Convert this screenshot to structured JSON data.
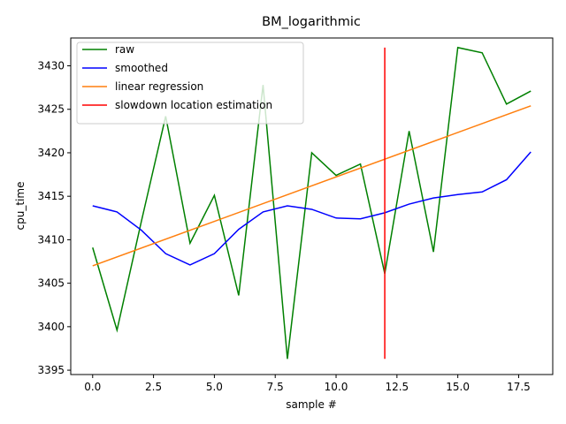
{
  "chart_data": {
    "type": "line",
    "title": "BM_logarithmic",
    "xlabel": "sample #",
    "ylabel": "cpu_time",
    "xlim": [
      -0.9,
      18.9
    ],
    "ylim": [
      3394.5,
      3433.2
    ],
    "x_ticks": [
      0.0,
      2.5,
      5.0,
      7.5,
      10.0,
      12.5,
      15.0,
      17.5
    ],
    "x_tick_labels": [
      "0.0",
      "2.5",
      "5.0",
      "7.5",
      "10.0",
      "12.5",
      "15.0",
      "17.5"
    ],
    "y_ticks": [
      3395,
      3400,
      3405,
      3410,
      3415,
      3420,
      3425,
      3430
    ],
    "y_tick_labels": [
      "3395",
      "3400",
      "3405",
      "3410",
      "3415",
      "3420",
      "3425",
      "3430"
    ],
    "grid": false,
    "legend_position": "top-left",
    "series": [
      {
        "name": "raw",
        "color": "#008000",
        "x": [
          0,
          1,
          2,
          3,
          4,
          5,
          6,
          7,
          8,
          9,
          10,
          11,
          12,
          13,
          14,
          15,
          16,
          17,
          18
        ],
        "values": [
          3409.1,
          3399.6,
          3412.1,
          3424.2,
          3409.6,
          3415.1,
          3403.6,
          3427.8,
          3396.3,
          3420.0,
          3417.4,
          3418.7,
          3406.1,
          3422.5,
          3408.6,
          3432.1,
          3431.5,
          3425.6,
          3427.1
        ]
      },
      {
        "name": "smoothed",
        "color": "#0000ff",
        "x": [
          0,
          1,
          2,
          3,
          4,
          5,
          6,
          7,
          8,
          9,
          10,
          11,
          12,
          13,
          14,
          15,
          16,
          17,
          18
        ],
        "values": [
          3413.9,
          3413.2,
          3411.1,
          3408.4,
          3407.1,
          3408.4,
          3411.2,
          3413.2,
          3413.9,
          3413.5,
          3412.5,
          3412.4,
          3413.1,
          3414.1,
          3414.8,
          3415.2,
          3415.5,
          3416.9,
          3420.1
        ]
      },
      {
        "name": "linear regression",
        "color": "#ff7f0e",
        "x": [
          0,
          18
        ],
        "values": [
          3407.0,
          3425.4
        ]
      },
      {
        "name": "slowdown location estimation",
        "color": "#ff0000",
        "x": [
          12,
          12
        ],
        "values": [
          3396.3,
          3432.1
        ]
      }
    ]
  }
}
